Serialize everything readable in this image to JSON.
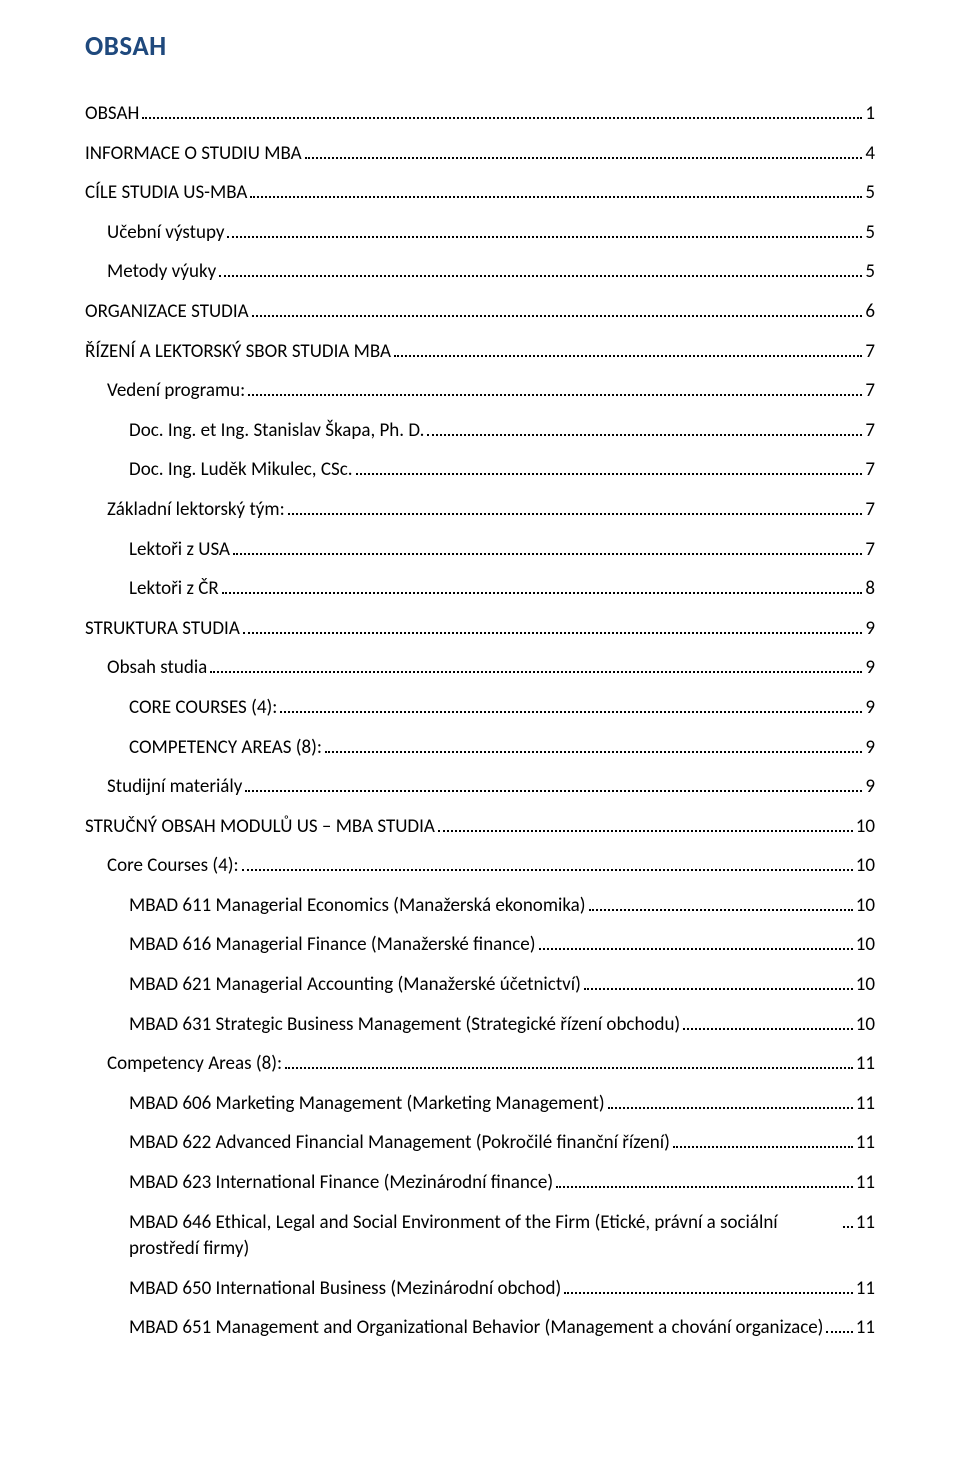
{
  "title": "OBSAH",
  "colors": {
    "title": "#1f497d",
    "text": "#000000",
    "background": "#ffffff"
  },
  "typography": {
    "title_fontsize": 27,
    "title_weight": "bold",
    "line_fontsize": 19,
    "font_family": "Calibri"
  },
  "toc": [
    {
      "label": "OBSAH",
      "page": "1",
      "level": 0
    },
    {
      "label": "INFORMACE O STUDIU MBA",
      "page": "4",
      "level": 0
    },
    {
      "label": "CÍLE STUDIA US-MBA",
      "page": "5",
      "level": 0
    },
    {
      "label": "Učební výstupy",
      "page": "5",
      "level": 1
    },
    {
      "label": "Metody výuky",
      "page": "5",
      "level": 1
    },
    {
      "label": "ORGANIZACE STUDIA",
      "page": "6",
      "level": 0
    },
    {
      "label": "ŘÍZENÍ A LEKTORSKÝ SBOR STUDIA MBA",
      "page": "7",
      "level": 0
    },
    {
      "label": "Vedení programu:",
      "page": "7",
      "level": 1
    },
    {
      "label": "Doc. Ing. et Ing. Stanislav Škapa, Ph. D.",
      "page": "7",
      "level": 2
    },
    {
      "label": "Doc. Ing. Luděk Mikulec, CSc.",
      "page": "7",
      "level": 2
    },
    {
      "label": "Základní lektorský tým:",
      "page": "7",
      "level": 1
    },
    {
      "label": "Lektoři z USA",
      "page": "7",
      "level": 2
    },
    {
      "label": "Lektoři z ČR",
      "page": "8",
      "level": 2
    },
    {
      "label": "STRUKTURA STUDIA",
      "page": "9",
      "level": 0
    },
    {
      "label": "Obsah studia",
      "page": "9",
      "level": 1
    },
    {
      "label": "CORE COURSES (4):",
      "page": "9",
      "level": 2
    },
    {
      "label": "COMPETENCY AREAS  (8):",
      "page": "9",
      "level": 2
    },
    {
      "label": "Studijní materiály",
      "page": "9",
      "level": 1
    },
    {
      "label": "STRUČNÝ OBSAH MODULŮ US – MBA STUDIA",
      "page": "10",
      "level": 0
    },
    {
      "label": "Core Courses (4):",
      "page": "10",
      "level": 1
    },
    {
      "label": "MBAD 611  Managerial Economics (Manažerská ekonomika)",
      "page": "10",
      "level": 2
    },
    {
      "label": "MBAD 616  Managerial Finance (Manažerské finance)",
      "page": "10",
      "level": 2
    },
    {
      "label": "MBAD 621  Managerial Accounting (Manažerské účetnictví)",
      "page": "10",
      "level": 2
    },
    {
      "label": "MBAD 631  Strategic Business Management (Strategické řízení obchodu)",
      "page": "10",
      "level": 2
    },
    {
      "label": "Competency Areas (8):",
      "page": "11",
      "level": 1
    },
    {
      "label": "MBAD 606  Marketing Management (Marketing Management)",
      "page": "11",
      "level": 2
    },
    {
      "label": "MBAD 622  Advanced Financial Management (Pokročilé finanční řízení)",
      "page": "11",
      "level": 2
    },
    {
      "label": "MBAD 623  International Finance (Mezinárodní finance)",
      "page": "11",
      "level": 2
    },
    {
      "label": "MBAD 646  Ethical, Legal and Social Environment of the Firm (Etické, právní a sociální prostředí firmy)",
      "page": "11",
      "level": 2,
      "wrap": true
    },
    {
      "label": "MBAD 650  International Business (Mezinárodní obchod)",
      "page": "11",
      "level": 2
    },
    {
      "label": "MBAD 651 Management and Organizational Behavior (Management a chování organizace)",
      "page": "11",
      "level": 2
    }
  ]
}
